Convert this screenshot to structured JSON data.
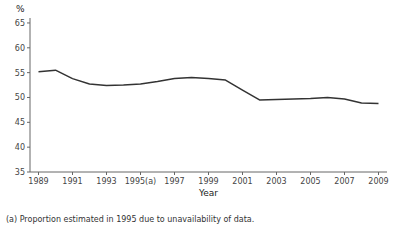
{
  "chart_data": {
    "type": "line",
    "x_label": "Year",
    "y_label": "%",
    "annotations": [
      "(a) Proportion estimated in 1995 due to unavailability of data."
    ],
    "x": [
      1989,
      1990,
      1991,
      1992,
      1993,
      1994,
      1995,
      1996,
      1997,
      1998,
      1999,
      2000,
      2001,
      2002,
      2003,
      2004,
      2005,
      2006,
      2007,
      2008,
      2009
    ],
    "values": [
      55.2,
      55.5,
      53.8,
      52.7,
      52.4,
      52.5,
      52.7,
      53.2,
      53.8,
      54.0,
      53.8,
      53.5,
      51.5,
      49.5,
      49.6,
      49.7,
      49.8,
      50.0,
      49.7,
      48.9,
      48.8
    ],
    "color": "#333333",
    "xlim": [
      1988.5,
      2009.5
    ],
    "ylim": [
      35,
      66
    ],
    "xticks": [
      1989,
      1991,
      1993,
      {
        "value": 1995,
        "label": "1995(a)"
      },
      1997,
      1999,
      2001,
      2003,
      2005,
      2007,
      2009
    ],
    "yticks": [
      35,
      40,
      45,
      50,
      55,
      60,
      65
    ],
    "grid": false
  }
}
